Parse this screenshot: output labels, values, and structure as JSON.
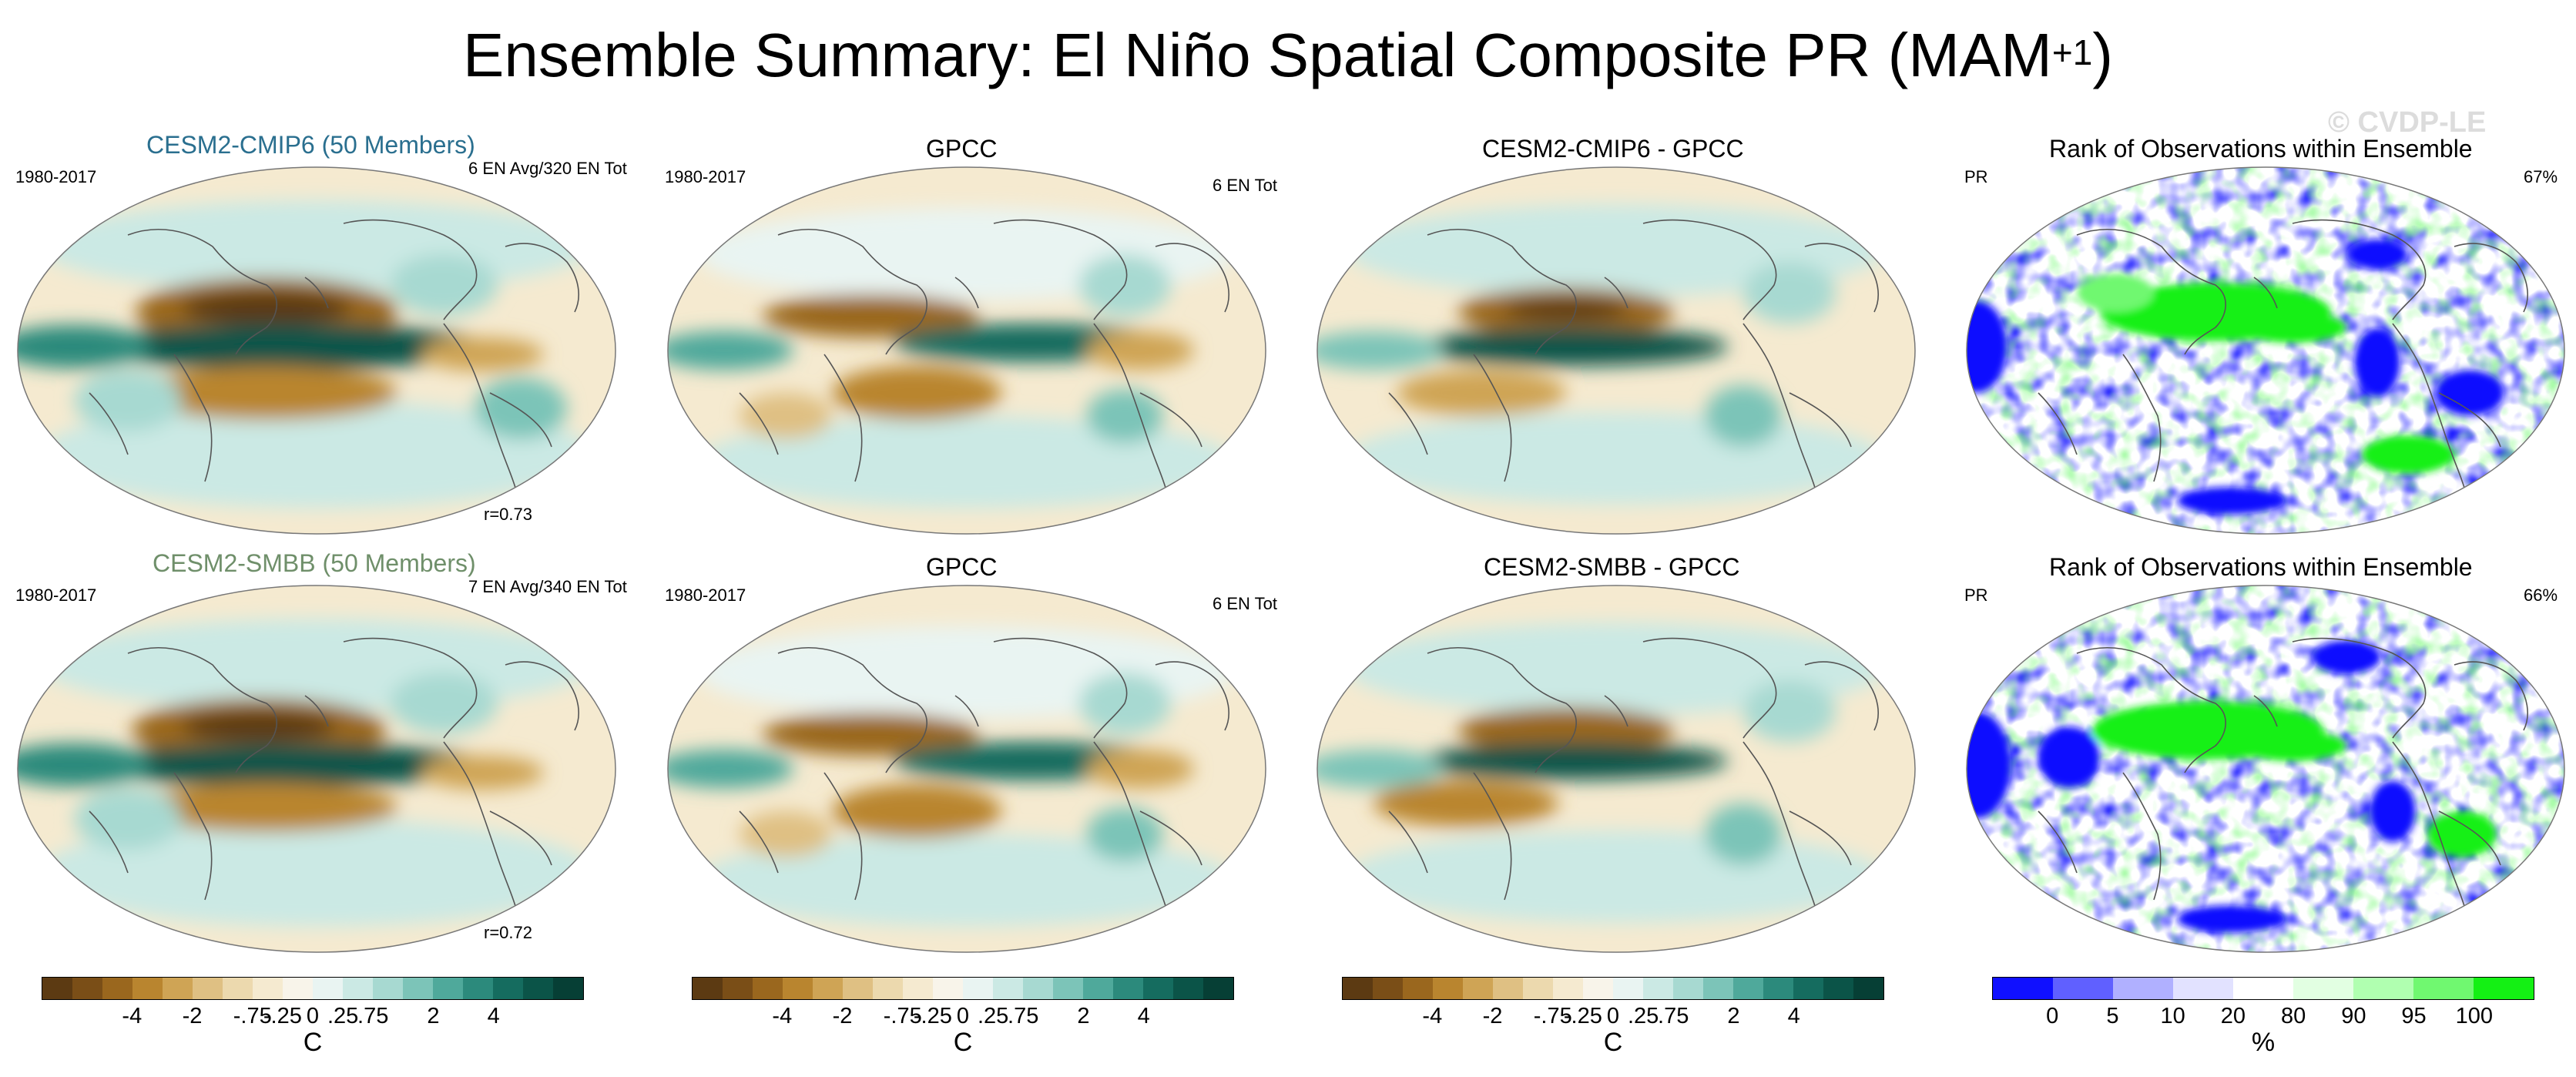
{
  "title": {
    "main": "Ensemble Summary: El Niño Spatial Composite PR (MAM",
    "sup": "+1",
    "close": ")"
  },
  "watermark": "© CVDP-LE",
  "colors": {
    "member1": "#2a6f8f",
    "member2": "#6f8f6a",
    "brown_teal": [
      "#5c3a12",
      "#7a4e17",
      "#9a671e",
      "#b9852f",
      "#cfa455",
      "#dfc083",
      "#ecd9ae",
      "#f5ead0",
      "#f8f4ea",
      "#e9f4f2",
      "#cbe9e4",
      "#a7d9d1",
      "#7cc4b8",
      "#4fa99b",
      "#2c8a7c",
      "#156c5f",
      "#0b5448",
      "#063f35"
    ],
    "rank": [
      "#1010ff",
      "#6060ff",
      "#b0b0ff",
      "#e2e2ff",
      "#ffffff",
      "#e2ffe2",
      "#b0ffb0",
      "#70f870",
      "#14f014"
    ]
  },
  "rows": [
    {
      "ensemble": {
        "title": "CESM2-CMIP6 (50 Members)",
        "period": "1980-2017",
        "events": "6 EN Avg/320 EN Tot",
        "corr": "r=0.73"
      },
      "obs": {
        "title": "GPCC",
        "period": "1980-2017",
        "events": "6 EN Tot"
      },
      "diff": {
        "title": "CESM2-CMIP6 - GPCC"
      },
      "rank": {
        "title": "Rank of Observations within Ensemble",
        "var": "PR",
        "pct": "67%"
      }
    },
    {
      "ensemble": {
        "title": "CESM2-SMBB (50 Members)",
        "period": "1980-2017",
        "events": "7 EN Avg/340 EN Tot",
        "corr": "r=0.72"
      },
      "obs": {
        "title": "GPCC",
        "period": "1980-2017",
        "events": "6 EN Tot"
      },
      "diff": {
        "title": "CESM2-SMBB - GPCC"
      },
      "rank": {
        "title": "Rank of Observations within Ensemble",
        "var": "PR",
        "pct": "66%"
      }
    }
  ],
  "colorbars": {
    "anomaly": {
      "ticks": [
        "-4",
        "-2",
        "-.75",
        "-.25",
        "0",
        ".25",
        ".75",
        "2",
        "4"
      ],
      "unit": "C"
    },
    "rank": {
      "ticks": [
        "0",
        "5",
        "10",
        "20",
        "80",
        "90",
        "95",
        "100"
      ],
      "unit": "%"
    }
  }
}
